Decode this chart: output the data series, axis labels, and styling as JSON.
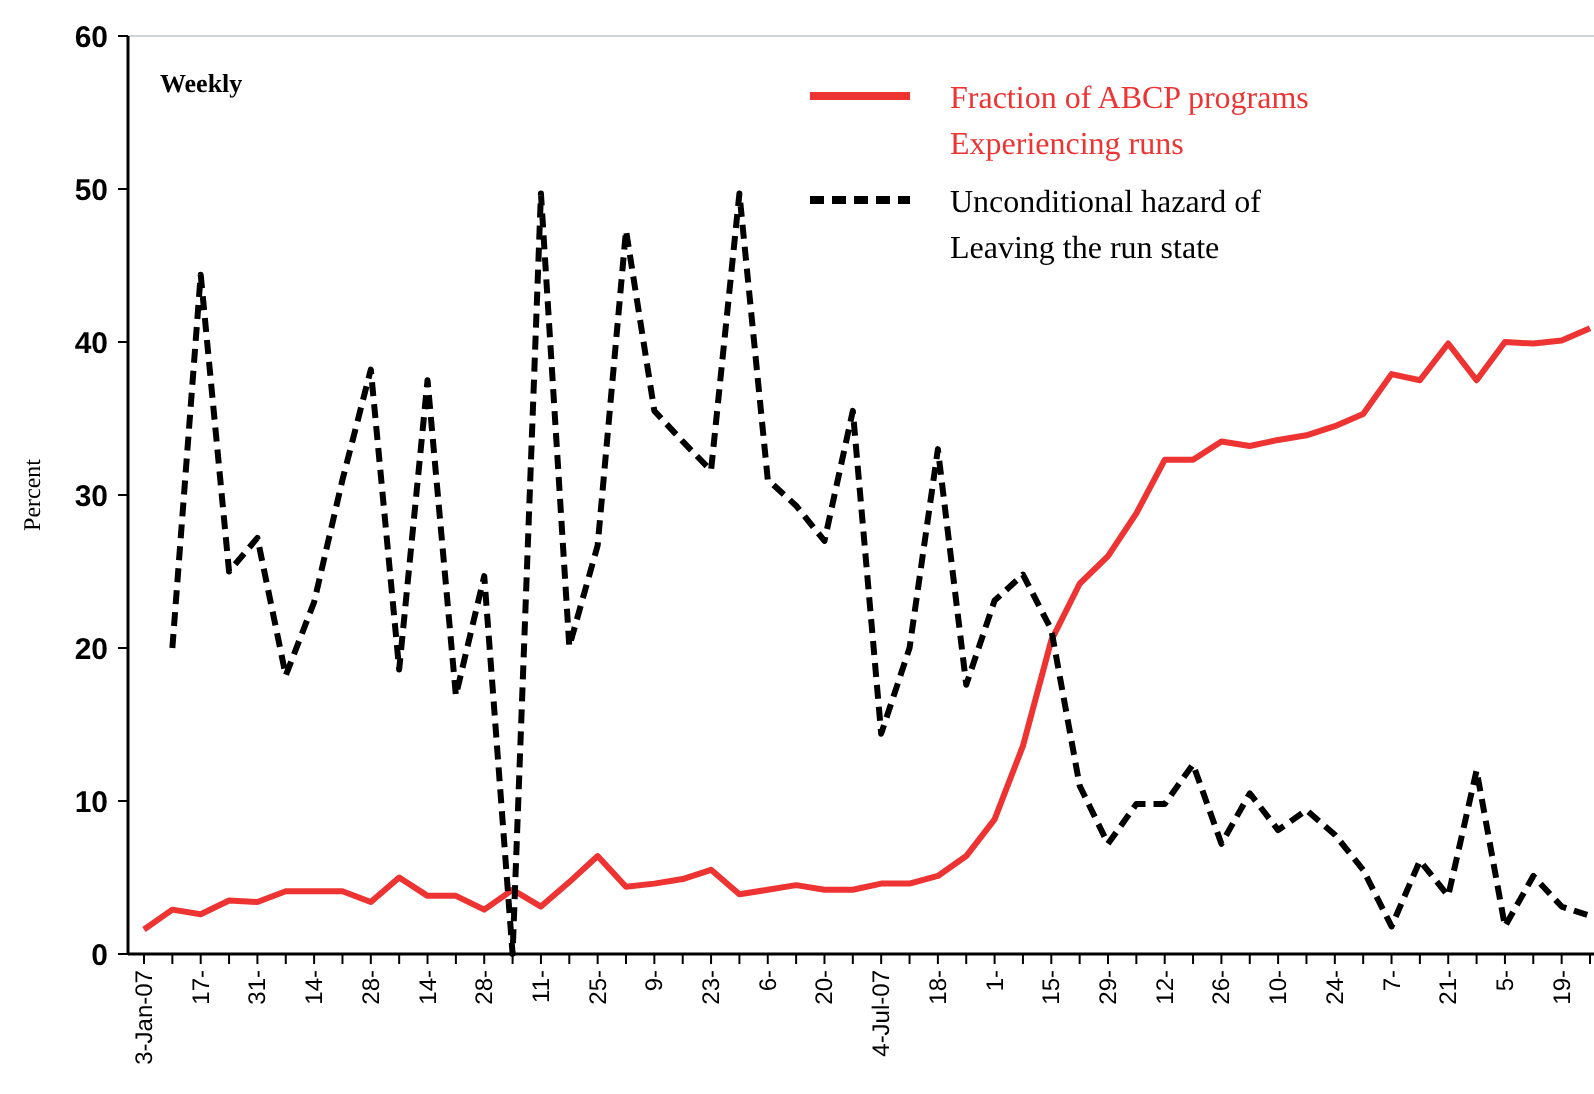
{
  "chart_data": {
    "type": "line",
    "ylabel": "Percent",
    "annotations": [
      "Weekly"
    ],
    "categories": [
      "3-Jan-07",
      null,
      "17-",
      null,
      "31-",
      null,
      "14-",
      null,
      "28-",
      null,
      "14-",
      null,
      "28-",
      null,
      "11-",
      null,
      "25-",
      null,
      "9-",
      null,
      "23-",
      null,
      "6-",
      null,
      "20-",
      null,
      "4-Jul-07",
      null,
      "18-",
      null,
      "1-",
      null,
      "15-",
      null,
      "29-",
      null,
      "12-",
      null,
      "26-",
      null,
      "10-",
      null,
      "24-",
      null,
      "7-",
      null,
      "21-",
      null,
      "5-",
      null,
      "19-",
      null
    ],
    "series": [
      {
        "name": "Fraction of ABCP programs Experiencing runs",
        "color": "#ee3333",
        "line_style": "solid",
        "values": [
          1.6,
          2.9,
          2.6,
          3.5,
          3.4,
          4.1,
          4.1,
          4.1,
          3.4,
          5,
          3.8,
          3.8,
          2.9,
          4.2,
          3.1,
          4.7,
          6.4,
          4.4,
          4.6,
          4.9,
          5.5,
          3.9,
          4.2,
          4.5,
          4.2,
          4.2,
          4.6,
          4.6,
          5.1,
          6.4,
          8.8,
          13.6,
          20.5,
          24.2,
          26,
          28.8,
          32.3,
          32.3,
          33.5,
          33.2,
          33.6,
          33.9,
          34.5,
          35.3,
          37.9,
          37.5,
          39.9,
          37.5,
          40,
          39.9,
          40.1,
          40.9
        ]
      },
      {
        "name": "Unconditional hazard of Leaving the run state",
        "color": "#000000",
        "line_style": "dashed",
        "values": [
          null,
          20,
          44.4,
          25,
          27.2,
          18.2,
          23,
          31,
          38.2,
          18.6,
          37.5,
          16.9,
          24.7,
          0,
          49.7,
          20.1,
          26.7,
          47.3,
          35.5,
          33.5,
          31.6,
          49.7,
          31,
          29.3,
          27,
          35.5,
          14.4,
          20,
          33,
          17.6,
          23.1,
          24.8,
          21.2,
          11,
          7.2,
          9.8,
          9.8,
          12.4,
          7.2,
          10.5,
          8.1,
          9.4,
          7.8,
          5.5,
          1.8,
          6.1,
          3.8,
          12,
          1.8,
          5.1,
          3.1,
          2.5
        ]
      }
    ],
    "ylim": [
      0,
      60
    ],
    "yticks": [
      0,
      10,
      20,
      30,
      40,
      50,
      60
    ],
    "grid": false,
    "legend": "top right",
    "marker": "none"
  }
}
